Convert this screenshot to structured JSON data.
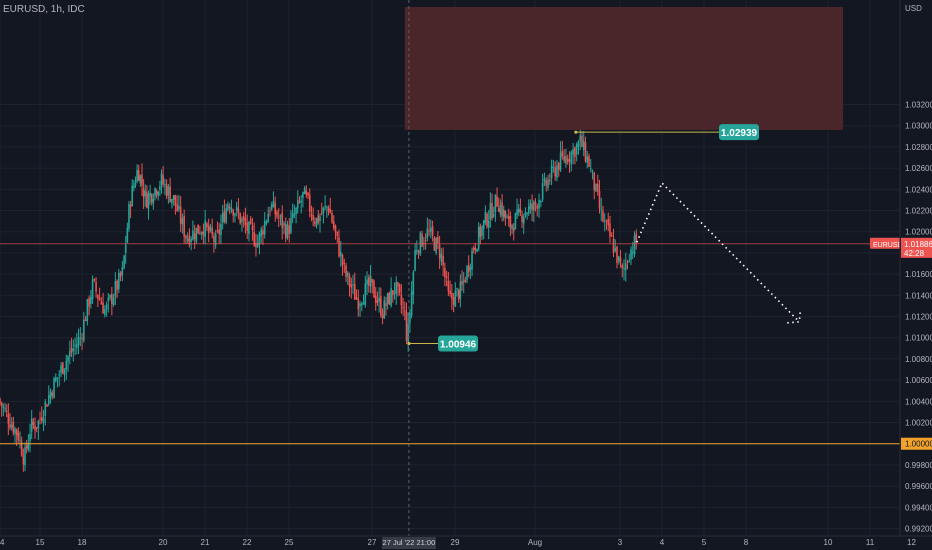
{
  "symbol_header": "EURUSD, 1h, IDC",
  "currency": "USD",
  "colors": {
    "background": "#131722",
    "up": "#26a69a",
    "down": "#ef5350",
    "grid": "#1e222d",
    "text": "#b2b5be",
    "level_line": "#f2a22b",
    "price_line": "#ef5350",
    "supply_zone": "#4a2529",
    "callout": "#26a69a"
  },
  "chart_data": {
    "type": "candlestick",
    "title": "EURUSD, 1h, IDC",
    "ylim": [
      0.9912,
      1.0412
    ],
    "y_ticks": [
      1.032,
      1.03,
      1.028,
      1.026,
      1.024,
      1.022,
      1.02,
      1.018,
      1.016,
      1.014,
      1.012,
      1.01,
      1.008,
      1.006,
      1.004,
      1.002,
      1.0,
      0.998,
      0.996,
      0.994,
      0.992
    ],
    "x_ticks": [
      "14",
      "15",
      "18",
      "20",
      "21",
      "22",
      "25",
      "27",
      "29",
      "Aug",
      "3",
      "4",
      "5",
      "8",
      "10",
      "11",
      "12"
    ],
    "x_ticks_day_index": [
      0,
      1,
      2,
      4,
      5,
      6,
      7,
      9,
      11,
      13,
      15,
      16,
      17,
      18,
      20,
      21,
      22
    ],
    "crosshair_label": "27 Jul '22  21:00",
    "crosshair_day_index": 9.9,
    "price_path": [
      [
        0.0,
        1.0042
      ],
      [
        0.2,
        1.0028
      ],
      [
        0.5,
        1.0008
      ],
      [
        0.65,
        0.9985
      ],
      [
        0.8,
        1.0015
      ],
      [
        1.0,
        1.002
      ],
      [
        1.3,
        1.005
      ],
      [
        1.6,
        1.0075
      ],
      [
        2.0,
        1.01
      ],
      [
        2.3,
        1.015
      ],
      [
        2.6,
        1.0125
      ],
      [
        3.0,
        1.016
      ],
      [
        3.2,
        1.023
      ],
      [
        3.4,
        1.026
      ],
      [
        3.6,
        1.023
      ],
      [
        4.0,
        1.0248
      ],
      [
        4.3,
        1.023
      ],
      [
        4.6,
        1.0195
      ],
      [
        5.0,
        1.0205
      ],
      [
        5.3,
        1.019
      ],
      [
        5.6,
        1.023
      ],
      [
        6.0,
        1.0205
      ],
      [
        6.3,
        1.019
      ],
      [
        6.6,
        1.0225
      ],
      [
        7.0,
        1.02
      ],
      [
        7.4,
        1.0235
      ],
      [
        7.7,
        1.021
      ],
      [
        8.0,
        1.0225
      ],
      [
        8.4,
        1.016
      ],
      [
        8.7,
        1.0135
      ],
      [
        9.0,
        1.015
      ],
      [
        9.3,
        1.0125
      ],
      [
        9.6,
        1.0148
      ],
      [
        9.85,
        1.012
      ],
      [
        9.9,
        1.0095
      ],
      [
        10.1,
        1.0185
      ],
      [
        10.4,
        1.02
      ],
      [
        10.7,
        1.018
      ],
      [
        10.9,
        1.0135
      ],
      [
        11.2,
        1.0145
      ],
      [
        11.5,
        1.0185
      ],
      [
        11.8,
        1.021
      ],
      [
        12.1,
        1.023
      ],
      [
        12.4,
        1.0205
      ],
      [
        12.8,
        1.022
      ],
      [
        13.0,
        1.0222
      ],
      [
        13.3,
        1.0245
      ],
      [
        13.6,
        1.0265
      ],
      [
        13.9,
        1.0275
      ],
      [
        14.1,
        1.0285
      ],
      [
        14.3,
        1.0265
      ],
      [
        14.6,
        1.0215
      ],
      [
        14.9,
        1.0185
      ],
      [
        15.1,
        1.016
      ],
      [
        15.25,
        1.018
      ],
      [
        15.4,
        1.019
      ]
    ],
    "annotations": {
      "swing_high": {
        "value": 1.02939,
        "label": "1.02939",
        "day_index": 13.95
      },
      "swing_low": {
        "value": 1.00946,
        "label": "1.00946",
        "day_index": 9.9
      },
      "parity_level": {
        "value": 1.0,
        "label": "1.00000"
      },
      "current_price": {
        "value": 1.01886,
        "label": "EURUSD",
        "price_label": "1.01886",
        "countdown": "42:28"
      },
      "supply_zone": {
        "from": 1.0296,
        "to": 1.0412,
        "day_start": 9.8,
        "day_end": 20.5
      },
      "projection": [
        [
          15.4,
          1.019
        ],
        [
          16.0,
          1.0246
        ],
        [
          19.3,
          1.0115
        ]
      ]
    }
  }
}
